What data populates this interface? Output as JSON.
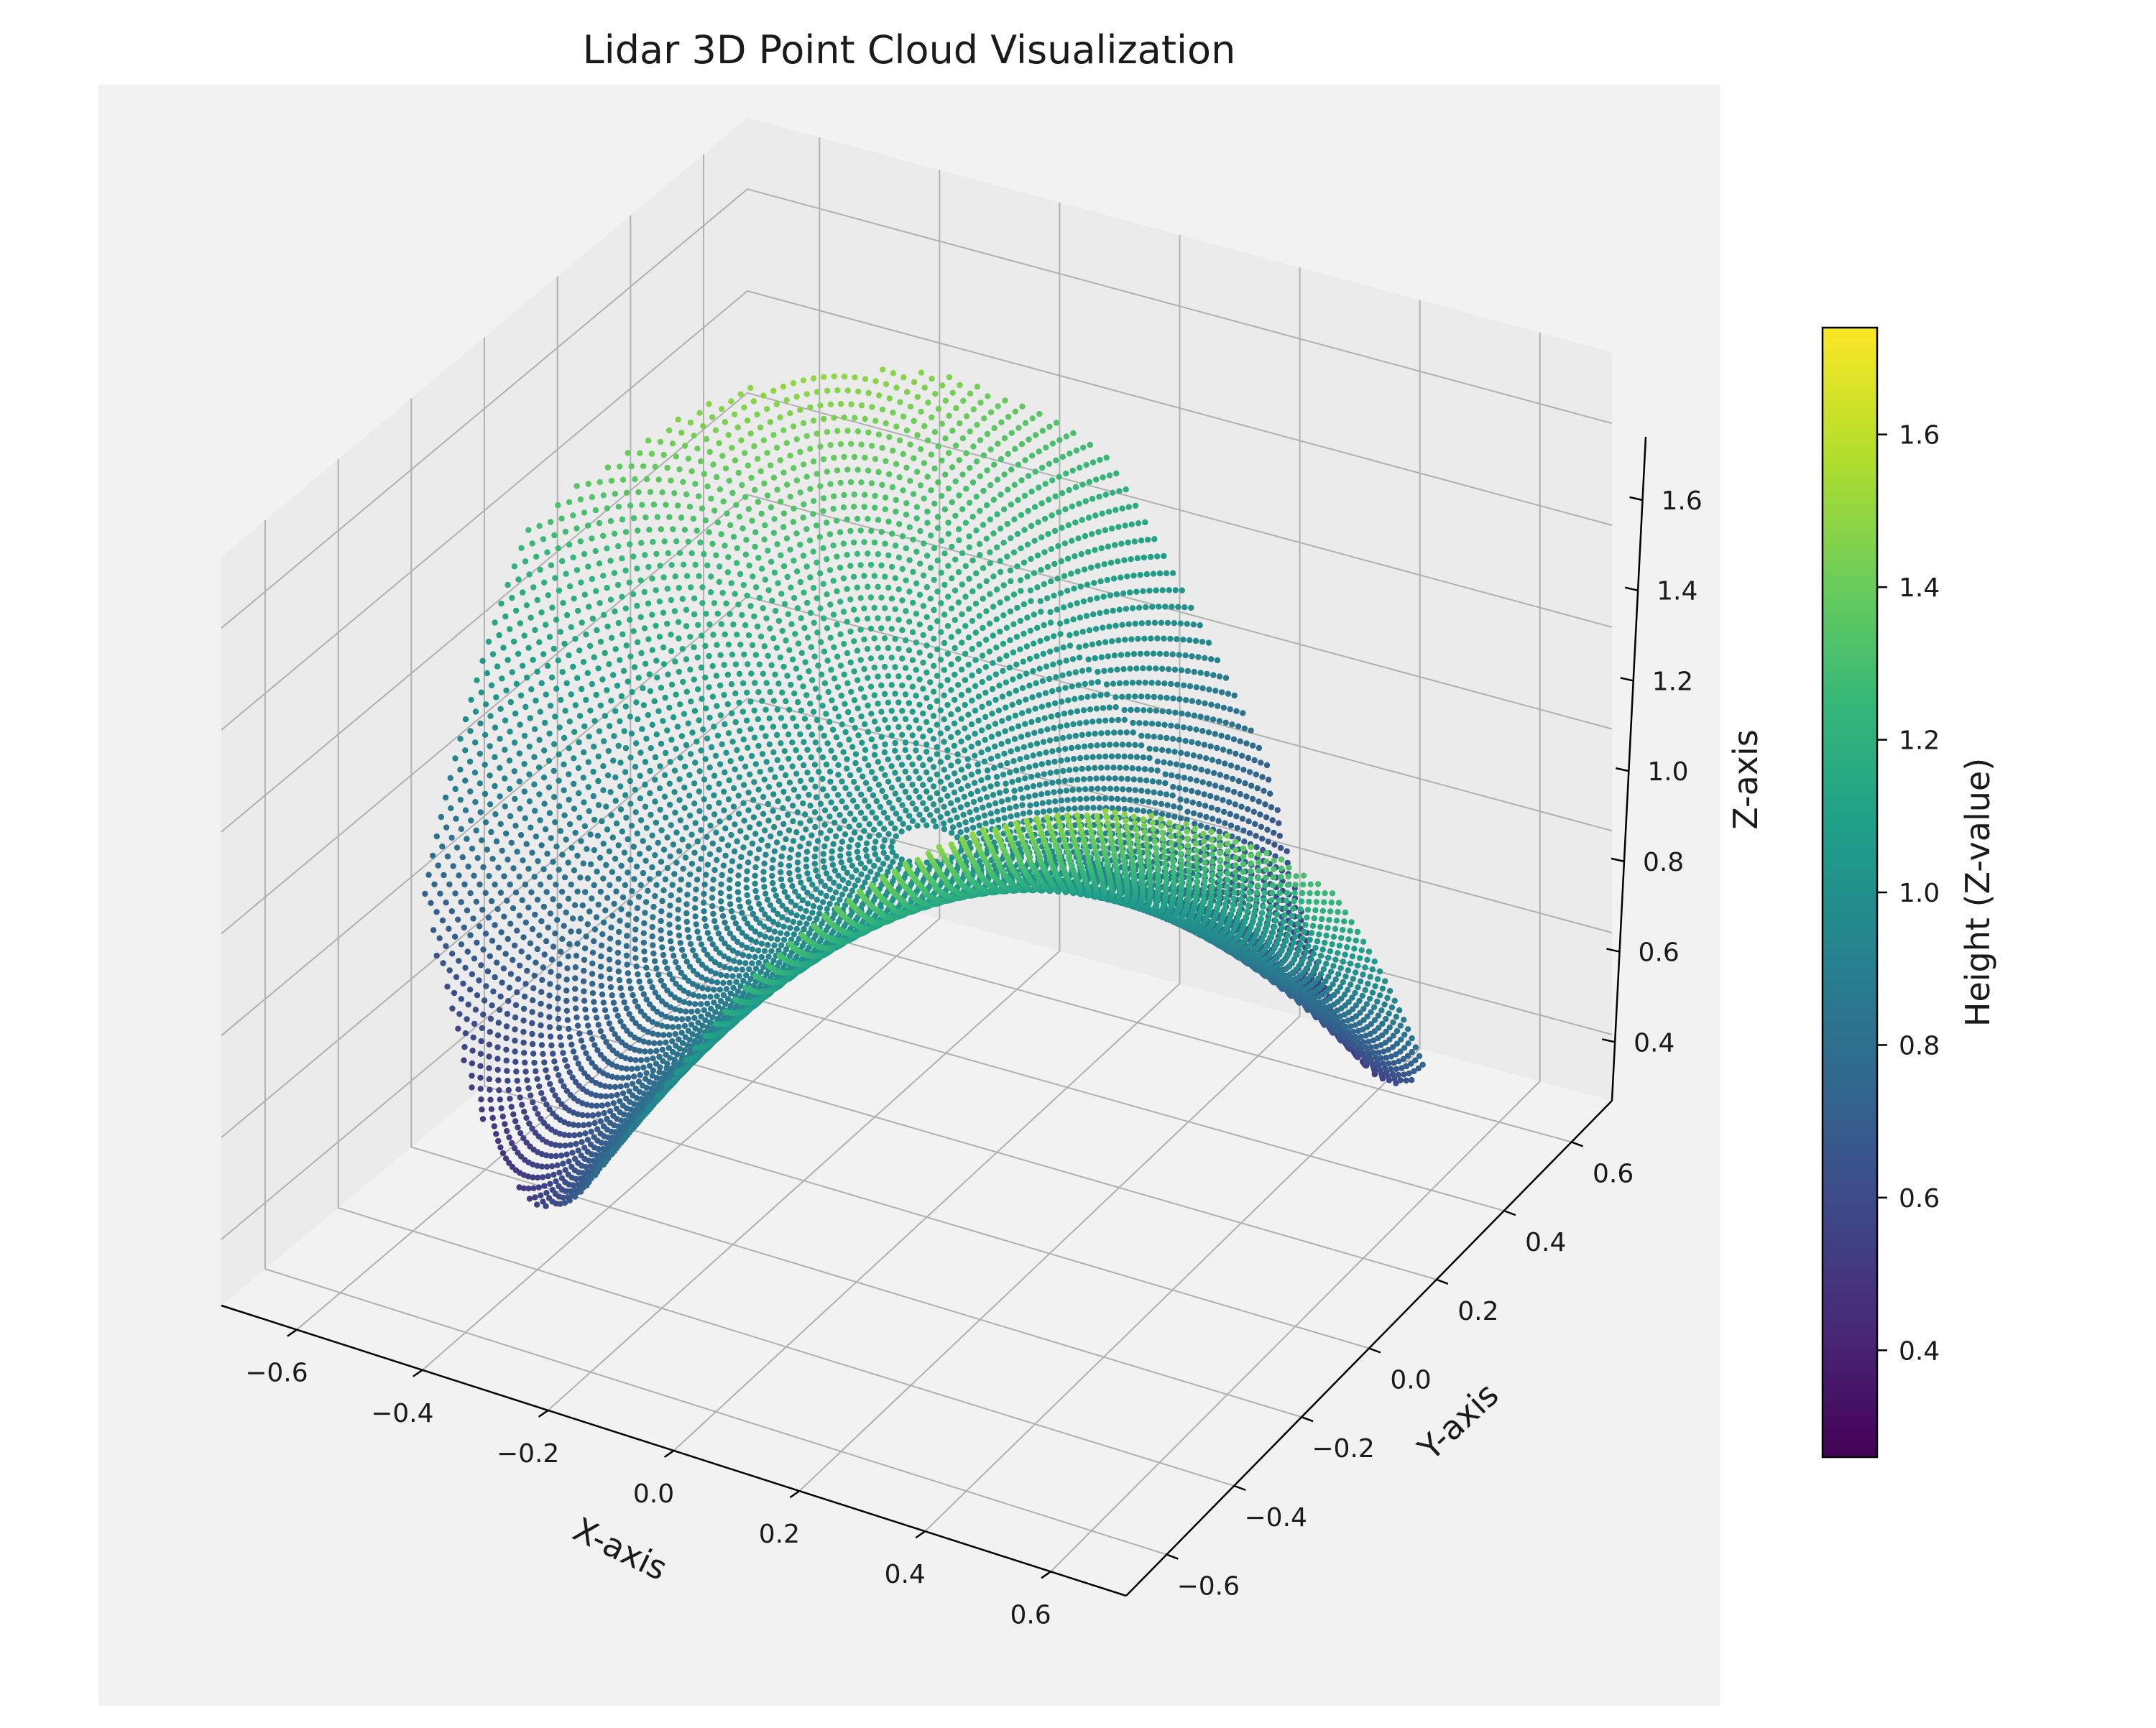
{
  "chart_data": {
    "type": "scatter",
    "subtype": "3d-point-cloud",
    "title": "Lidar 3D Point Cloud Visualization",
    "xlabel": "X-axis",
    "ylabel": "Y-axis",
    "zlabel": "Z-axis",
    "xlim": [
      -0.72,
      0.72
    ],
    "ylim": [
      -0.72,
      0.72
    ],
    "zlim": [
      0.27,
      1.74
    ],
    "x_ticks": [
      "−0.6",
      "−0.4",
      "−0.2",
      "0.0",
      "0.2",
      "0.4",
      "0.6"
    ],
    "y_ticks": [
      "−0.6",
      "−0.4",
      "−0.2",
      "0.0",
      "0.2",
      "0.4",
      "0.6"
    ],
    "z_ticks": [
      "0.4",
      "0.6",
      "0.8",
      "1.0",
      "1.2",
      "1.4",
      "1.6"
    ],
    "surface": {
      "description": "saddle-shaped point cloud, points colored by height",
      "z_center": 1.0,
      "z_min": 0.26,
      "z_max": 1.74
    },
    "grid": true,
    "colorbar": {
      "label": "Height (Z-value)",
      "colormap": "viridis",
      "range": [
        0.26,
        1.74
      ],
      "ticks": [
        "0.4",
        "0.6",
        "0.8",
        "1.0",
        "1.2",
        "1.4",
        "1.6"
      ],
      "placement": "right"
    },
    "colors": {
      "pane": "#f2f2f2",
      "pane_side": "#ebebeb",
      "grid": "#b0b0b0",
      "background": "#ffffff"
    }
  }
}
